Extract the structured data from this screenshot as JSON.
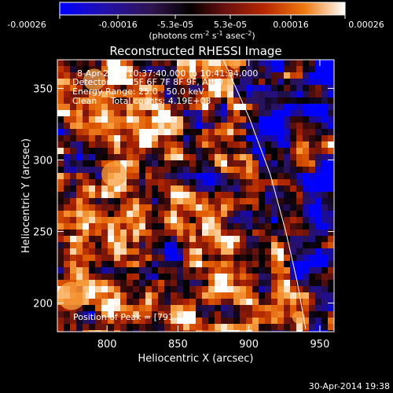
{
  "colors": {
    "background": "#000000",
    "text": "#ffffff",
    "colormap": [
      "#0000ff",
      "#1a0aa0",
      "#2a1360",
      "#000000",
      "#5a1010",
      "#a82000",
      "#e05a00",
      "#f8a040",
      "#ffffff"
    ]
  },
  "colorbar": {
    "tick_labels": [
      "-0.00026",
      "-0.00016",
      "-5.3e-05",
      "5.3e-05",
      "0.00016",
      "0.00026"
    ],
    "unit_label": "(photons cm",
    "unit_exp1": "-2",
    "unit_mid": " s",
    "unit_exp2": "-1",
    "unit_mid2": " asec",
    "unit_exp3": "-2",
    "unit_end": ")",
    "range": [
      -0.00026,
      0.00026
    ]
  },
  "chart_data": {
    "type": "heatmap",
    "title": "Reconstructed RHESSI Image",
    "xlabel": "Heliocentric X (arcsec)",
    "ylabel": "Heliocentric Y (arcsec)",
    "xlim": [
      765,
      960
    ],
    "ylim": [
      180,
      370
    ],
    "x_ticks": [
      800,
      850,
      900,
      950
    ],
    "y_ticks": [
      200,
      250,
      300,
      350
    ],
    "annotations": [
      "8-Apr-2012 10:37:40.000 to 10:41:34.000",
      "Detectors: 3F 5F 6F 7F 8F 9F, Att 0",
      "Energy Range: 25.0 - 50.0 keV",
      "Clean     Total counts: 4.19E+03"
    ],
    "peak_label": "Position of Peak = [791,356]",
    "peak": [
      791,
      356
    ],
    "limb_points": [
      [
        882,
        370
      ],
      [
        900,
        330
      ],
      [
        915,
        290
      ],
      [
        926,
        250
      ],
      [
        934,
        215
      ],
      [
        940,
        182
      ]
    ]
  },
  "footer": {
    "timestamp": "30-Apr-2014 19:38"
  }
}
